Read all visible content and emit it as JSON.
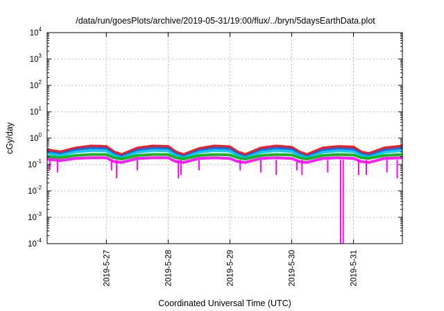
{
  "chart_data": {
    "type": "line",
    "title": "/data/run/goesPlots/archive/2019-05-31/19:00/flux/../bryn/5daysEarthData.plot",
    "xlabel": "Coordinated Universal Time (UTC)",
    "ylabel": "cGy/day",
    "yscale": "log",
    "ylim": [
      0.0001,
      10000
    ],
    "xlim": [
      "2019-05-26T01:00",
      "2019-05-31T19:00"
    ],
    "yticks": [
      {
        "base": "10",
        "exp": "-4",
        "value": 0.0001
      },
      {
        "base": "10",
        "exp": "-3",
        "value": 0.001
      },
      {
        "base": "10",
        "exp": "-2",
        "value": 0.01
      },
      {
        "base": "10",
        "exp": "-1",
        "value": 0.1
      },
      {
        "base": "10",
        "exp": "0",
        "value": 1
      },
      {
        "base": "10",
        "exp": "1",
        "value": 10
      },
      {
        "base": "10",
        "exp": "2",
        "value": 100
      },
      {
        "base": "10",
        "exp": "3",
        "value": 1000
      },
      {
        "base": "10",
        "exp": "4",
        "value": 10000
      }
    ],
    "xticks": [
      {
        "label": "2019-5-27",
        "x": "2019-05-27T00:00"
      },
      {
        "label": "2019-5-28",
        "x": "2019-05-28T00:00"
      },
      {
        "label": "2019-5-29",
        "x": "2019-05-29T00:00"
      },
      {
        "label": "2019-5-30",
        "x": "2019-05-30T00:00"
      },
      {
        "label": "2019-5-31",
        "x": "2019-05-31T00:00"
      }
    ],
    "grid": true,
    "x": [
      "2019-05-26T01:00",
      "2019-05-26T06:00",
      "2019-05-26T12:00",
      "2019-05-26T18:00",
      "2019-05-27T00:00",
      "2019-05-27T03:00",
      "2019-05-27T06:00",
      "2019-05-27T12:00",
      "2019-05-27T18:00",
      "2019-05-28T00:00",
      "2019-05-28T03:00",
      "2019-05-28T06:00",
      "2019-05-28T12:00",
      "2019-05-28T18:00",
      "2019-05-29T00:00",
      "2019-05-29T03:00",
      "2019-05-29T06:00",
      "2019-05-29T12:00",
      "2019-05-29T18:00",
      "2019-05-30T00:00",
      "2019-05-30T03:00",
      "2019-05-30T06:00",
      "2019-05-30T12:00",
      "2019-05-30T18:00",
      "2019-05-31T00:00",
      "2019-05-31T03:00",
      "2019-05-31T06:00",
      "2019-05-31T12:00",
      "2019-05-31T19:00"
    ],
    "series": [
      {
        "color": "#ff0000",
        "values": [
          0.36,
          0.3,
          0.42,
          0.5,
          0.48,
          0.3,
          0.24,
          0.42,
          0.5,
          0.48,
          0.3,
          0.24,
          0.4,
          0.5,
          0.47,
          0.3,
          0.24,
          0.42,
          0.5,
          0.45,
          0.3,
          0.24,
          0.42,
          0.48,
          0.46,
          0.3,
          0.26,
          0.42,
          0.5
        ]
      },
      {
        "color": "#1060e0",
        "values": [
          0.3,
          0.25,
          0.36,
          0.42,
          0.4,
          0.25,
          0.2,
          0.35,
          0.42,
          0.4,
          0.25,
          0.2,
          0.34,
          0.42,
          0.39,
          0.25,
          0.2,
          0.35,
          0.42,
          0.38,
          0.25,
          0.2,
          0.35,
          0.4,
          0.38,
          0.25,
          0.22,
          0.35,
          0.42
        ]
      },
      {
        "color": "#00c8f0",
        "values": [
          0.26,
          0.22,
          0.3,
          0.34,
          0.33,
          0.22,
          0.18,
          0.29,
          0.34,
          0.33,
          0.22,
          0.18,
          0.29,
          0.34,
          0.32,
          0.22,
          0.18,
          0.29,
          0.34,
          0.31,
          0.22,
          0.18,
          0.29,
          0.33,
          0.31,
          0.22,
          0.19,
          0.29,
          0.34
        ]
      },
      {
        "color": "#00b000",
        "values": [
          0.2,
          0.18,
          0.22,
          0.24,
          0.24,
          0.18,
          0.16,
          0.22,
          0.24,
          0.24,
          0.18,
          0.16,
          0.22,
          0.24,
          0.23,
          0.18,
          0.16,
          0.22,
          0.24,
          0.23,
          0.18,
          0.16,
          0.22,
          0.24,
          0.23,
          0.18,
          0.17,
          0.22,
          0.24
        ]
      },
      {
        "color": "#ff00ff",
        "values": [
          0.16,
          0.14,
          0.17,
          0.18,
          0.18,
          0.13,
          0.12,
          0.17,
          0.18,
          0.18,
          0.13,
          0.12,
          0.17,
          0.18,
          0.17,
          0.13,
          0.12,
          0.17,
          0.18,
          0.17,
          0.13,
          0.12,
          0.17,
          0.18,
          0.17,
          0.13,
          0.12,
          0.17,
          0.18
        ]
      }
    ],
    "dips": [
      {
        "x": "2019-05-26T02:00",
        "y": 0.06
      },
      {
        "x": "2019-05-26T05:00",
        "y": 0.05
      },
      {
        "x": "2019-05-27T02:00",
        "y": 0.06
      },
      {
        "x": "2019-05-27T04:00",
        "y": 0.03
      },
      {
        "x": "2019-05-27T12:00",
        "y": 0.06
      },
      {
        "x": "2019-05-28T04:00",
        "y": 0.03
      },
      {
        "x": "2019-05-28T05:00",
        "y": 0.04
      },
      {
        "x": "2019-05-28T12:00",
        "y": 0.06
      },
      {
        "x": "2019-05-29T04:00",
        "y": 0.06
      },
      {
        "x": "2019-05-29T12:00",
        "y": 0.05
      },
      {
        "x": "2019-05-29T18:00",
        "y": 0.04
      },
      {
        "x": "2019-05-30T02:00",
        "y": 0.06
      },
      {
        "x": "2019-05-30T04:00",
        "y": 0.04
      },
      {
        "x": "2019-05-30T14:00",
        "y": 0.05
      },
      {
        "x": "2019-05-30T19:00",
        "y": 0.0001
      },
      {
        "x": "2019-05-30T20:00",
        "y": 0.0001
      },
      {
        "x": "2019-05-31T02:00",
        "y": 0.04
      },
      {
        "x": "2019-05-31T05:00",
        "y": 0.04
      },
      {
        "x": "2019-05-31T13:00",
        "y": 0.05
      },
      {
        "x": "2019-05-31T17:00",
        "y": 0.03
      }
    ]
  }
}
